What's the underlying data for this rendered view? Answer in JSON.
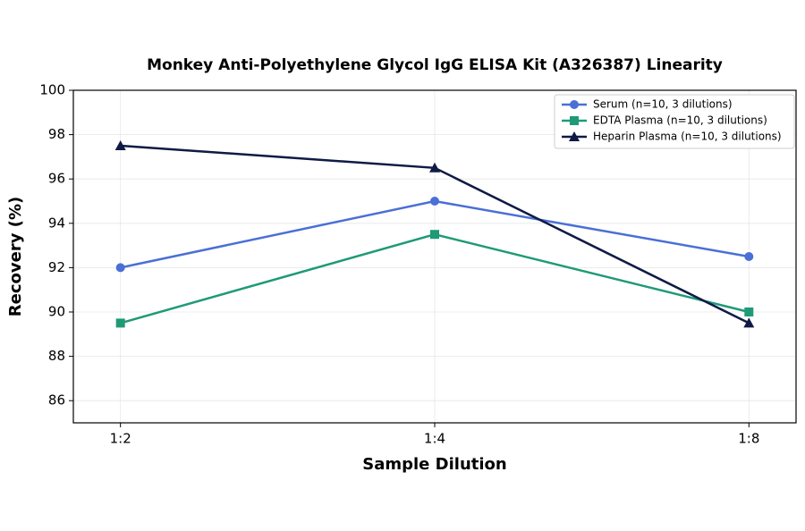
{
  "chart_data": {
    "type": "line",
    "title": "Monkey Anti-Polyethylene Glycol IgG ELISA Kit (A326387) Linearity",
    "x_label": "Sample Dilution",
    "y_label": "Recovery (%)",
    "categories": [
      "1:2",
      "1:4",
      "1:8"
    ],
    "series": [
      {
        "name": "Serum (n=10, 3 dilutions)",
        "color": "#4a6fd6",
        "marker": "circle",
        "values": [
          92,
          95,
          92.5
        ]
      },
      {
        "name": "EDTA Plasma (n=10, 3 dilutions)",
        "color": "#1f9a76",
        "marker": "square",
        "values": [
          89.5,
          93.5,
          90
        ]
      },
      {
        "name": "Heparin Plasma (n=10, 3 dilutions)",
        "color": "#0f1a45",
        "marker": "triangle",
        "values": [
          97.5,
          96.5,
          89.5
        ]
      }
    ],
    "ylim": [
      85,
      100
    ],
    "yticks": [
      86,
      88,
      90,
      92,
      94,
      96,
      98,
      100
    ],
    "grid": true,
    "legend": "upper-right"
  }
}
